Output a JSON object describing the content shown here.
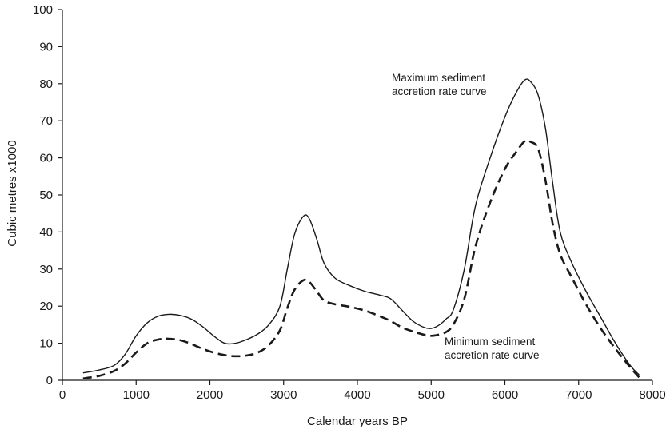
{
  "chart_data": {
    "type": "line",
    "xlabel": "Calendar years BP",
    "ylabel": "Cubic metres  x1000",
    "xlim": [
      0,
      8000
    ],
    "ylim": [
      0,
      100
    ],
    "xticks": [
      0,
      1000,
      2000,
      3000,
      4000,
      5000,
      6000,
      7000,
      8000
    ],
    "yticks": [
      0,
      10,
      20,
      30,
      40,
      50,
      60,
      70,
      80,
      90,
      100
    ],
    "xtick_labels": [
      "0",
      "1000",
      "2000",
      "3000",
      "4000",
      "5000",
      "6000",
      "7000",
      "8000"
    ],
    "ytick_labels": [
      "0",
      "10",
      "20",
      "30",
      "40",
      "50",
      "60",
      "70",
      "80",
      "90",
      "100"
    ],
    "grid": false,
    "legend": "none",
    "series": [
      {
        "style": "solid",
        "color": "#1a1a1a",
        "x": [
          280,
          500,
          700,
          850,
          1000,
          1150,
          1300,
          1450,
          1600,
          1750,
          1900,
          2050,
          2200,
          2350,
          2500,
          2650,
          2800,
          2950,
          3050,
          3150,
          3270,
          3350,
          3450,
          3550,
          3700,
          3900,
          4100,
          4300,
          4450,
          4600,
          4750,
          4900,
          5000,
          5100,
          5200,
          5300,
          5450,
          5600,
          5800,
          6000,
          6150,
          6270,
          6350,
          6450,
          6550,
          6650,
          6750,
          6900,
          7100,
          7300,
          7500,
          7700,
          7820
        ],
        "y": [
          2,
          2.8,
          4,
          7,
          12,
          15.5,
          17.3,
          17.8,
          17.5,
          16.5,
          14.5,
          12,
          10,
          10,
          11,
          12.5,
          15,
          20,
          30,
          39.5,
          44.3,
          43.5,
          38,
          31.5,
          27.5,
          25.5,
          24,
          23,
          22,
          19,
          16,
          14.3,
          14,
          14.8,
          16.5,
          19,
          30,
          47,
          60,
          71,
          77.5,
          81,
          80.5,
          77,
          68,
          53,
          40,
          32,
          24,
          17,
          10,
          4,
          1.5
        ]
      },
      {
        "style": "dashed",
        "color": "#1a1a1a",
        "x": [
          280,
          500,
          700,
          850,
          1000,
          1150,
          1300,
          1450,
          1600,
          1750,
          1900,
          2050,
          2200,
          2350,
          2500,
          2650,
          2800,
          2950,
          3050,
          3150,
          3270,
          3350,
          3450,
          3550,
          3700,
          3900,
          4100,
          4300,
          4450,
          4600,
          4750,
          4900,
          5000,
          5100,
          5200,
          5300,
          5450,
          5600,
          5800,
          6000,
          6150,
          6270,
          6350,
          6450,
          6550,
          6650,
          6750,
          6900,
          7100,
          7300,
          7500,
          7700,
          7820
        ],
        "y": [
          0.5,
          1.2,
          2.5,
          4.5,
          7.5,
          10,
          11,
          11.2,
          10.8,
          9.8,
          8.5,
          7.5,
          6.8,
          6.5,
          6.7,
          7.5,
          9.5,
          13.5,
          19.5,
          24.5,
          27,
          26.5,
          24,
          21.5,
          20.5,
          19.8,
          18.8,
          17.3,
          16,
          14.3,
          13.2,
          12.3,
          12,
          12.3,
          13,
          15,
          22,
          36,
          48,
          57,
          61.5,
          64.5,
          64.3,
          62.5,
          54,
          42,
          34,
          28,
          20.5,
          14,
          8.5,
          3.5,
          0.8
        ]
      }
    ],
    "annotations": [
      {
        "lines": [
          "Maximum sediment",
          "accretion rate curve"
        ]
      },
      {
        "lines": [
          "Minimum sediment",
          "accretion rate curve"
        ]
      }
    ]
  }
}
